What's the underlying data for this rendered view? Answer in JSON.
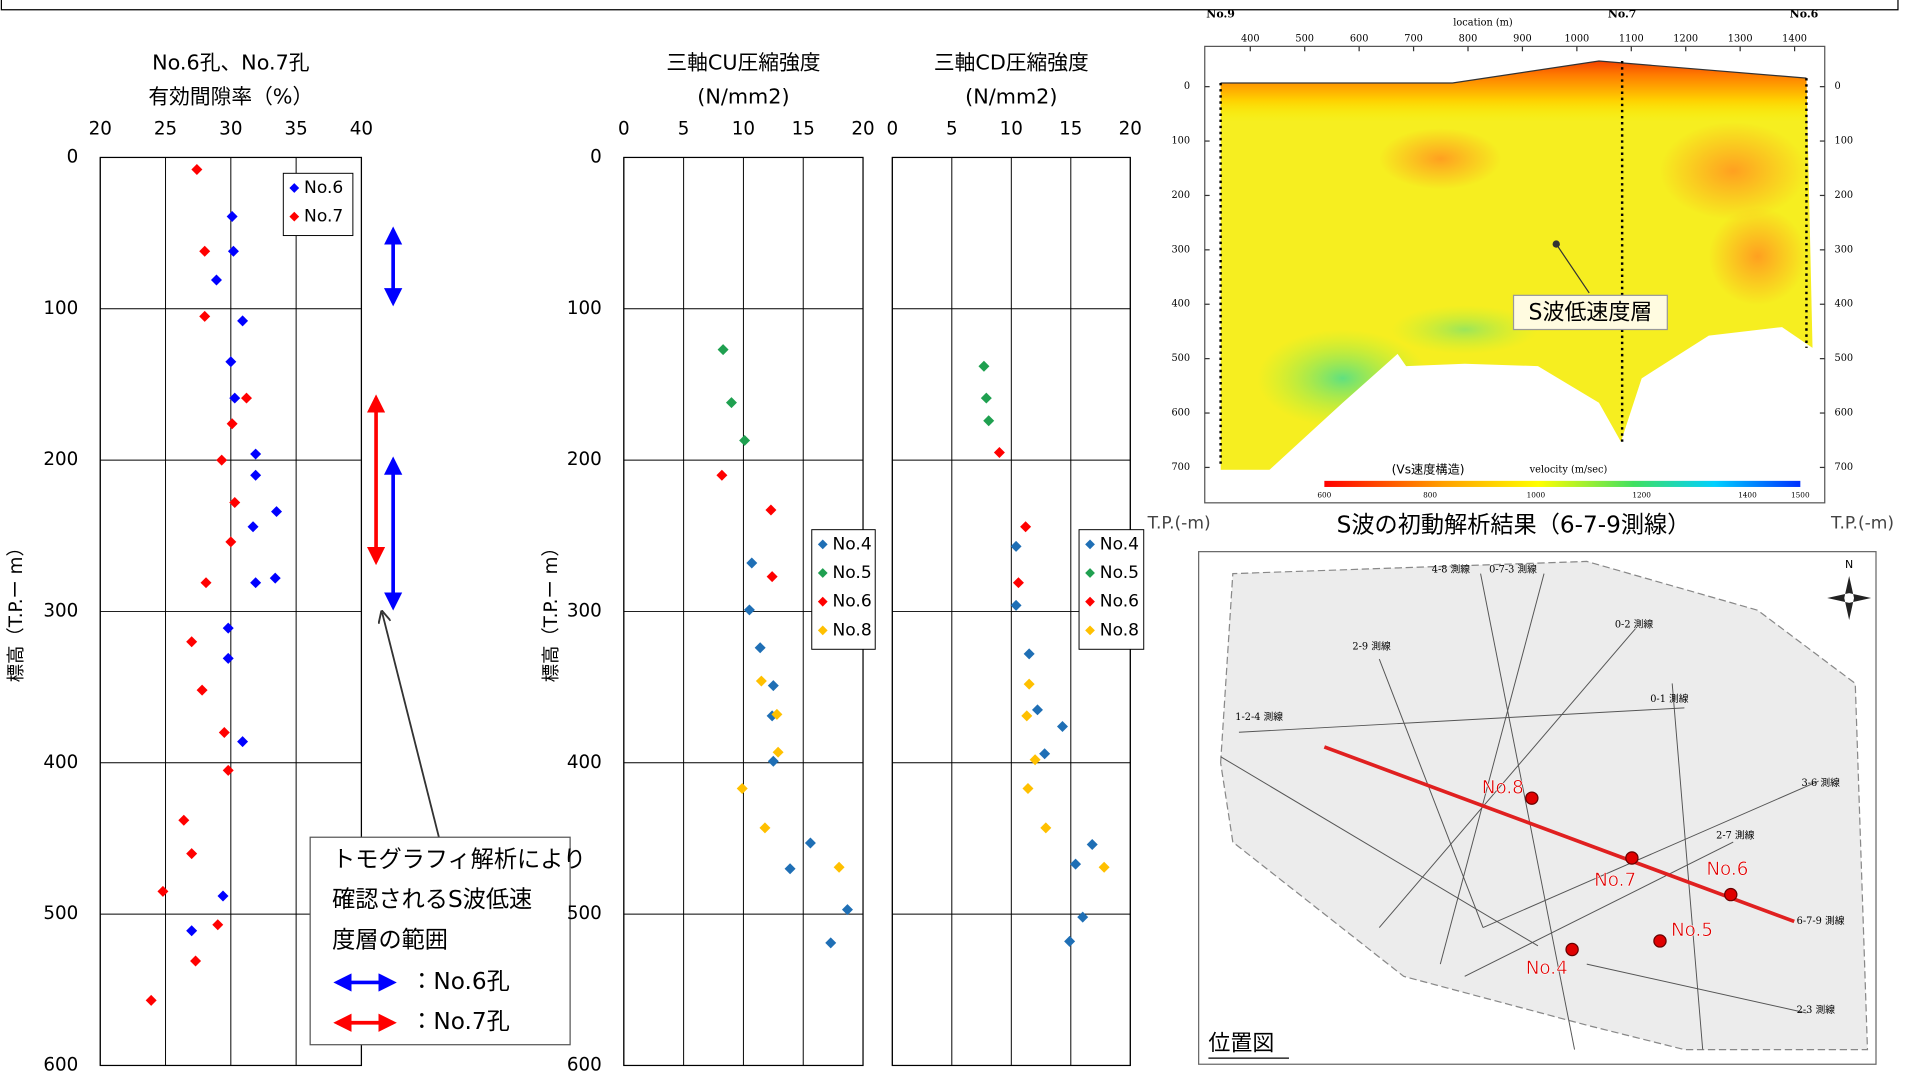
{
  "chart_data": [
    {
      "type": "scatter",
      "title": [
        "No.6孔、No.7孔",
        "有効間隙率（%）"
      ],
      "ylabel": "標高（T.P.ー m）",
      "xlim": [
        20,
        40
      ],
      "xticks": [
        20,
        25,
        30,
        35,
        40
      ],
      "ylim": [
        0,
        600
      ],
      "yticks": [
        0,
        100,
        200,
        300,
        400,
        500,
        600
      ],
      "y_inverted": true,
      "grid": true,
      "show_ytick_labels": true,
      "legend": "upper right",
      "series": [
        {
          "name": "No.6",
          "color": "#0000ff",
          "x": [
            30.1,
            30.2,
            28.9,
            30.9,
            30.0,
            30.3,
            31.9,
            31.9,
            33.5,
            31.7,
            33.4,
            31.9,
            29.8,
            29.8,
            30.9,
            29.4,
            27.0
          ],
          "y": [
            39,
            62,
            81,
            108,
            135,
            159,
            196,
            210,
            234,
            244,
            278,
            281,
            311,
            331,
            386,
            488,
            511
          ]
        },
        {
          "name": "No.7",
          "color": "#ff0000",
          "x": [
            27.4,
            28.0,
            28.0,
            31.2,
            30.1,
            29.3,
            30.3,
            30.0,
            28.1,
            27.0,
            27.8,
            29.5,
            29.8,
            26.4,
            27.0,
            24.8,
            29.0,
            27.3,
            23.9
          ],
          "y": [
            8,
            62,
            105,
            159,
            176,
            200,
            228,
            254,
            281,
            320,
            352,
            380,
            405,
            438,
            460,
            485,
            507,
            531,
            557
          ]
        }
      ],
      "ranges": [
        {
          "color": "#0000ff",
          "values": [
            48,
            96
          ]
        },
        {
          "color": "#0000ff",
          "values": [
            200,
            297
          ]
        },
        {
          "color": "#ff0000",
          "values": [
            159,
            267
          ]
        }
      ],
      "annotation": {
        "lines": [
          "トモグラフィ解析により",
          "確認されるS波低速",
          "度層の範囲"
        ],
        "legend": [
          "：No.6孔",
          "：No.7孔"
        ]
      }
    },
    {
      "type": "scatter",
      "title": [
        "三軸CU圧縮強度",
        "(N/mm2)"
      ],
      "ylabel": "標高（T.P.ー m）",
      "xlim": [
        0,
        20
      ],
      "xticks": [
        0,
        5,
        10,
        15,
        20
      ],
      "ylim": [
        0,
        600
      ],
      "yticks": [
        0,
        100,
        200,
        300,
        400,
        500,
        600
      ],
      "y_inverted": true,
      "grid": true,
      "show_ytick_labels": true,
      "legend": "center right",
      "series": [
        {
          "name": "No.4",
          "color": "#1f6fb5",
          "x": [
            10.7,
            10.5,
            11.4,
            12.5,
            12.4,
            12.5,
            15.6,
            13.9,
            18.7,
            17.3
          ],
          "y": [
            268,
            299,
            324,
            349,
            369,
            399,
            453,
            470,
            497,
            519
          ]
        },
        {
          "name": "No.5",
          "color": "#1fa050",
          "x": [
            8.3,
            9.0,
            10.1
          ],
          "y": [
            127,
            162,
            187
          ]
        },
        {
          "name": "No.6",
          "color": "#ff0000",
          "x": [
            8.2,
            12.3,
            12.4
          ],
          "y": [
            210,
            233,
            277
          ]
        },
        {
          "name": "No.8",
          "color": "#ffc000",
          "x": [
            11.5,
            12.8,
            12.9,
            9.9,
            11.8,
            18.0
          ],
          "y": [
            346,
            368,
            393,
            417,
            443,
            469
          ]
        }
      ]
    },
    {
      "type": "scatter",
      "title": [
        "三軸CD圧縮強度",
        "(N/mm2)"
      ],
      "xlim": [
        0,
        20
      ],
      "xticks": [
        0,
        5,
        10,
        15,
        20
      ],
      "ylim": [
        0,
        600
      ],
      "yticks": [
        0,
        100,
        200,
        300,
        400,
        500,
        600
      ],
      "y_inverted": true,
      "grid": true,
      "show_ytick_labels": false,
      "legend": "center right",
      "series": [
        {
          "name": "No.4",
          "color": "#1f6fb5",
          "x": [
            10.4,
            10.4,
            11.5,
            12.2,
            14.3,
            12.8,
            16.8,
            15.4,
            16.0,
            14.9
          ],
          "y": [
            257,
            296,
            328,
            365,
            376,
            394,
            454,
            467,
            502,
            518
          ]
        },
        {
          "name": "No.5",
          "color": "#1fa050",
          "x": [
            7.7,
            7.9,
            8.1
          ],
          "y": [
            138,
            159,
            174
          ]
        },
        {
          "name": "No.6",
          "color": "#ff0000",
          "x": [
            9.0,
            11.2,
            10.6
          ],
          "y": [
            195,
            244,
            281
          ]
        },
        {
          "name": "No.8",
          "color": "#ffc000",
          "x": [
            11.5,
            11.3,
            12.0,
            11.4,
            12.9,
            17.8
          ],
          "y": [
            348,
            369,
            398,
            417,
            443,
            469
          ]
        }
      ]
    }
  ],
  "tomography": {
    "stations": [
      "No.9",
      "No.7",
      "No.6"
    ],
    "xlabel": "location (m)",
    "xlim": [
      350,
      1450
    ],
    "xticks": [
      400,
      500,
      600,
      700,
      800,
      900,
      1000,
      1100,
      1200,
      1300,
      1400
    ],
    "ylim": [
      0,
      700
    ],
    "yticks": [
      0,
      100,
      200,
      300,
      400,
      500,
      600,
      700
    ],
    "ylabels": [
      "T.P.(-m)",
      "T.P.(-m)"
    ],
    "annotation": "S波低速度層",
    "colorbar_label": "(Vs速度構造)",
    "colorbar_unit_label": "velocity (m/sec)",
    "clim": [
      600,
      1500
    ],
    "cticks": [
      600,
      800,
      1000,
      1200,
      1400,
      1500
    ],
    "caption": "S波の初動解析結果（6-7-9測線）"
  },
  "map": {
    "title": "位置図",
    "boreholes": [
      "No.8",
      "No.7",
      "No.6",
      "No.5",
      "No.4"
    ],
    "lines": [
      "4-8 測線",
      "0-7-3 測線",
      "0-2 測線",
      "2-9 測線",
      "0-1 測線",
      "1-2-4 測線",
      "3-6 測線",
      "2-7 測線",
      "6-7-9 測線",
      "2-3 測線"
    ]
  }
}
